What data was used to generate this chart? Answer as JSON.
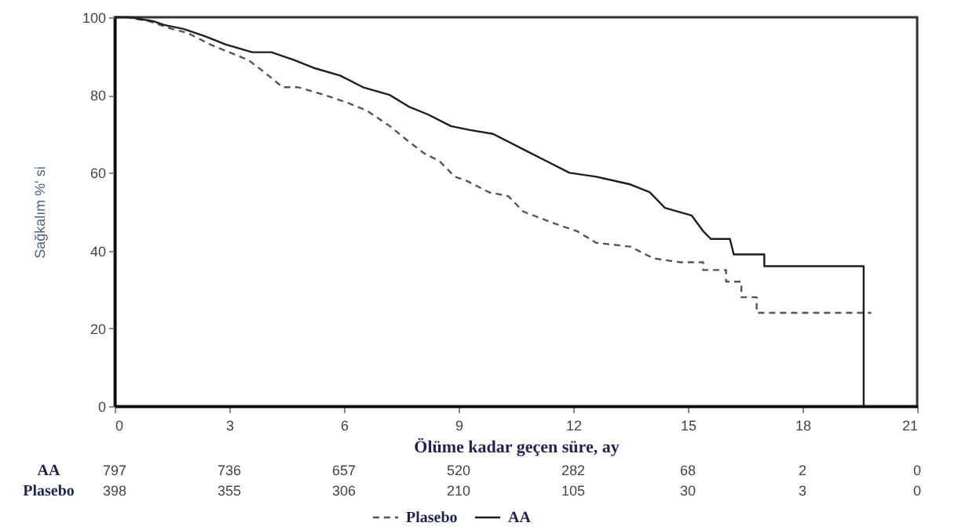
{
  "chart_data": {
    "type": "line",
    "xlabel": "Ölüme kadar geçen süre, ay",
    "ylabel": "Sağkalım %' si",
    "xlim": [
      0,
      21
    ],
    "xticks": [
      0,
      3,
      6,
      9,
      12,
      15,
      18,
      21
    ],
    "ylim": [
      0,
      100
    ],
    "yticks": [
      0,
      20,
      40,
      60,
      80,
      100
    ],
    "legend": "bottom",
    "series": [
      {
        "name": "Plasebo",
        "color": "#555555",
        "line_style": "dashed",
        "x": [
          0,
          0.3,
          0.9,
          1.5,
          1.9,
          2.5,
          3.0,
          3.5,
          3.9,
          4.4,
          4.8,
          5.5,
          6.1,
          6.6,
          7.2,
          7.7,
          8.1,
          8.5,
          8.9,
          9.2,
          9.8,
          10.3,
          10.7,
          11.5,
          12.1,
          12.6,
          13.5,
          14.1,
          14.8,
          15.4,
          15.4,
          16.0,
          16.0,
          16.4,
          16.4,
          16.8,
          16.8,
          19.8
        ],
        "values": [
          100,
          100,
          99,
          97,
          96,
          93,
          91,
          89,
          86,
          82,
          82,
          80,
          78,
          76,
          72,
          68,
          65,
          63,
          59,
          58,
          55,
          54,
          50,
          47,
          45,
          42,
          41,
          38,
          37,
          37,
          35,
          35,
          32,
          32,
          28,
          28,
          24,
          24
        ]
      },
      {
        "name": "AA",
        "color": "#1e1e1e",
        "line_style": "solid",
        "x": [
          0,
          0.4,
          1.0,
          1.3,
          1.8,
          2.4,
          2.9,
          3.6,
          4.1,
          4.7,
          5.2,
          5.9,
          6.5,
          7.2,
          7.7,
          8.2,
          8.8,
          9.3,
          9.9,
          10.7,
          11.3,
          11.9,
          12.6,
          13.5,
          14.0,
          14.4,
          15.1,
          15.4,
          15.6,
          16.1,
          16.2,
          17.0,
          17.0,
          19.6,
          19.6
        ],
        "values": [
          100,
          100,
          99,
          98,
          97,
          95,
          93,
          91,
          91,
          89,
          87,
          85,
          82,
          80,
          77,
          75,
          72,
          71,
          70,
          66,
          63,
          60,
          59,
          57,
          55,
          51,
          49,
          45,
          43,
          43,
          39,
          39,
          36,
          36,
          0
        ]
      }
    ],
    "annotations": [
      "AA",
      "797",
      "736",
      "657",
      "520",
      "282",
      "68",
      "2",
      "0",
      "Plasebo",
      "398",
      "355",
      "306",
      "210",
      "105",
      "30",
      "3",
      "0"
    ]
  }
}
